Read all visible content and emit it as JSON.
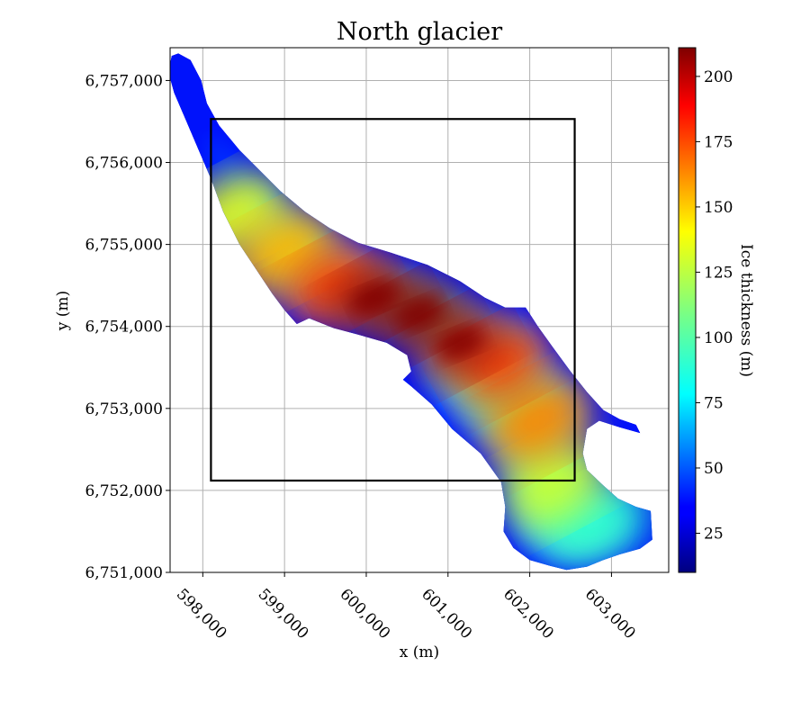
{
  "chart_data": {
    "type": "heatmap",
    "title": "North glacier",
    "xlabel": "x (m)",
    "ylabel": "y (m)",
    "xlim": [
      597600,
      603700
    ],
    "ylim": [
      6751000,
      6757400
    ],
    "xticks": [
      598000,
      599000,
      600000,
      601000,
      602000,
      603000
    ],
    "xtick_labels": [
      "598,000",
      "599,000",
      "600,000",
      "601,000",
      "602,000",
      "603,000"
    ],
    "yticks": [
      6751000,
      6752000,
      6753000,
      6754000,
      6755000,
      6756000,
      6757000
    ],
    "ytick_labels": [
      "6,751,000",
      "6,752,000",
      "6,753,000",
      "6,754,000",
      "6,755,000",
      "6,756,000",
      "6,757,000"
    ],
    "grid": true,
    "colormap": "jet",
    "colorbar": {
      "label": "Ice thickness (m)",
      "range": [
        10,
        211
      ],
      "ticks": [
        25,
        50,
        75,
        100,
        125,
        150,
        175,
        200
      ],
      "tick_labels": [
        "25",
        "50",
        "75",
        "100",
        "125",
        "150",
        "175",
        "200"
      ]
    },
    "rectangle": {
      "x0": 598100,
      "x1": 602550,
      "y0": 6752120,
      "y1": 6756530,
      "color": "#000000"
    },
    "glacier_outline": [
      [
        597700,
        6757330
      ],
      [
        597850,
        6757250
      ],
      [
        597980,
        6757000
      ],
      [
        598050,
        6756720
      ],
      [
        598200,
        6756450
      ],
      [
        598450,
        6756150
      ],
      [
        598700,
        6755900
      ],
      [
        598950,
        6755650
      ],
      [
        599250,
        6755400
      ],
      [
        599550,
        6755200
      ],
      [
        599900,
        6755020
      ],
      [
        600300,
        6754900
      ],
      [
        600750,
        6754750
      ],
      [
        601150,
        6754550
      ],
      [
        601450,
        6754350
      ],
      [
        601700,
        6754230
      ],
      [
        601950,
        6754230
      ],
      [
        602100,
        6754000
      ],
      [
        602280,
        6753750
      ],
      [
        602500,
        6753450
      ],
      [
        602700,
        6753200
      ],
      [
        602900,
        6752980
      ],
      [
        603100,
        6752870
      ],
      [
        603300,
        6752800
      ],
      [
        603350,
        6752700
      ],
      [
        603100,
        6752770
      ],
      [
        602850,
        6752850
      ],
      [
        602700,
        6752750
      ],
      [
        602650,
        6752450
      ],
      [
        602700,
        6752250
      ],
      [
        602900,
        6752060
      ],
      [
        603080,
        6751900
      ],
      [
        603300,
        6751800
      ],
      [
        603480,
        6751750
      ],
      [
        603500,
        6751400
      ],
      [
        603350,
        6751290
      ],
      [
        603100,
        6751220
      ],
      [
        602900,
        6751150
      ],
      [
        602700,
        6751070
      ],
      [
        602450,
        6751030
      ],
      [
        602250,
        6751080
      ],
      [
        602000,
        6751150
      ],
      [
        601800,
        6751300
      ],
      [
        601680,
        6751500
      ],
      [
        601700,
        6751800
      ],
      [
        601650,
        6752100
      ],
      [
        601400,
        6752450
      ],
      [
        601050,
        6752750
      ],
      [
        600800,
        6753050
      ],
      [
        600550,
        6753270
      ],
      [
        600450,
        6753350
      ],
      [
        600550,
        6753450
      ],
      [
        600500,
        6753650
      ],
      [
        600250,
        6753800
      ],
      [
        599900,
        6753900
      ],
      [
        599600,
        6753980
      ],
      [
        599300,
        6754100
      ],
      [
        599150,
        6754030
      ],
      [
        599000,
        6754200
      ],
      [
        598850,
        6754400
      ],
      [
        598650,
        6754700
      ],
      [
        598450,
        6755000
      ],
      [
        598250,
        6755400
      ],
      [
        598100,
        6755800
      ],
      [
        597950,
        6756150
      ],
      [
        597800,
        6756500
      ],
      [
        597650,
        6756850
      ],
      [
        597580,
        6757100
      ],
      [
        597620,
        6757300
      ]
    ],
    "thickness_blobs": [
      {
        "x": 598350,
        "y": 6755350,
        "value": 130
      },
      {
        "x": 599000,
        "y": 6754900,
        "value": 150
      },
      {
        "x": 599600,
        "y": 6754500,
        "value": 175
      },
      {
        "x": 600100,
        "y": 6754350,
        "value": 205
      },
      {
        "x": 600650,
        "y": 6754150,
        "value": 208
      },
      {
        "x": 601150,
        "y": 6753800,
        "value": 200
      },
      {
        "x": 601650,
        "y": 6753550,
        "value": 175
      },
      {
        "x": 602100,
        "y": 6752850,
        "value": 160
      },
      {
        "x": 602300,
        "y": 6752100,
        "value": 125
      },
      {
        "x": 602800,
        "y": 6751600,
        "value": 95
      }
    ]
  }
}
